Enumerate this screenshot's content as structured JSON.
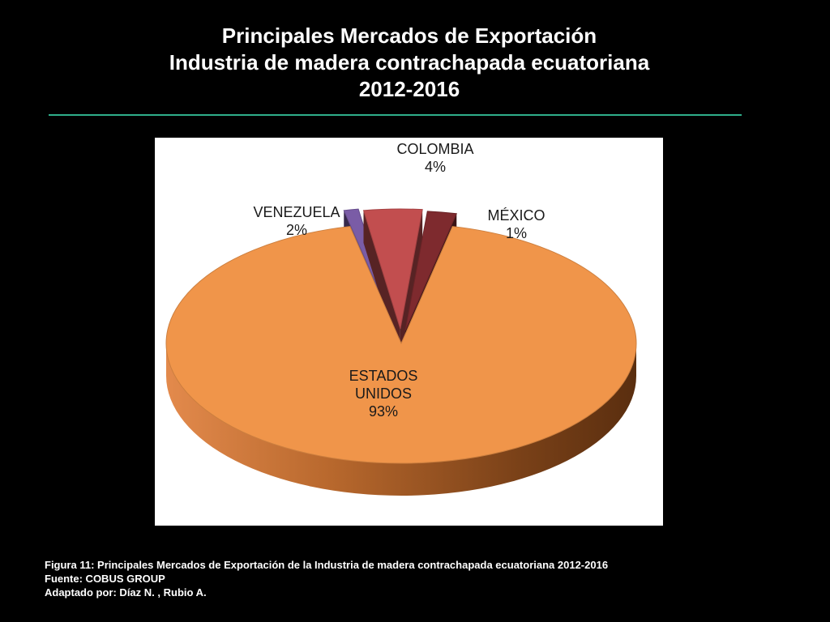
{
  "slide": {
    "title_lines": [
      "Principales Mercados de Exportación",
      "Industria de madera contrachapada ecuatoriana",
      "2012-2016"
    ]
  },
  "chart_data": {
    "type": "pie",
    "style": "3d-exploded",
    "slices": [
      {
        "label": "ESTADOS UNIDOS",
        "label_lines": [
          "ESTADOS",
          "UNIDOS"
        ],
        "value": 93,
        "value_text": "93%",
        "color": "#F0954A"
      },
      {
        "label": "VENEZUELA",
        "label_lines": [
          "VENEZUELA"
        ],
        "value": 2,
        "value_text": "2%",
        "color": "#7E2A2E"
      },
      {
        "label": "COLOMBIA",
        "label_lines": [
          "COLOMBIA"
        ],
        "value": 4,
        "value_text": "4%",
        "color": "#C24E4F"
      },
      {
        "label": "MÉXICO",
        "label_lines": [
          "MÉXICO"
        ],
        "value": 1,
        "value_text": "1%",
        "color": "#7A5CA6"
      }
    ]
  },
  "caption": {
    "figure": "Figura 11: Principales Mercados de Exportación de la Industria de madera contrachapada ecuatoriana 2012-2016",
    "source": "Fuente:  COBUS GROUP",
    "adapted": "Adaptado por: Díaz N. , Rubio  A."
  }
}
